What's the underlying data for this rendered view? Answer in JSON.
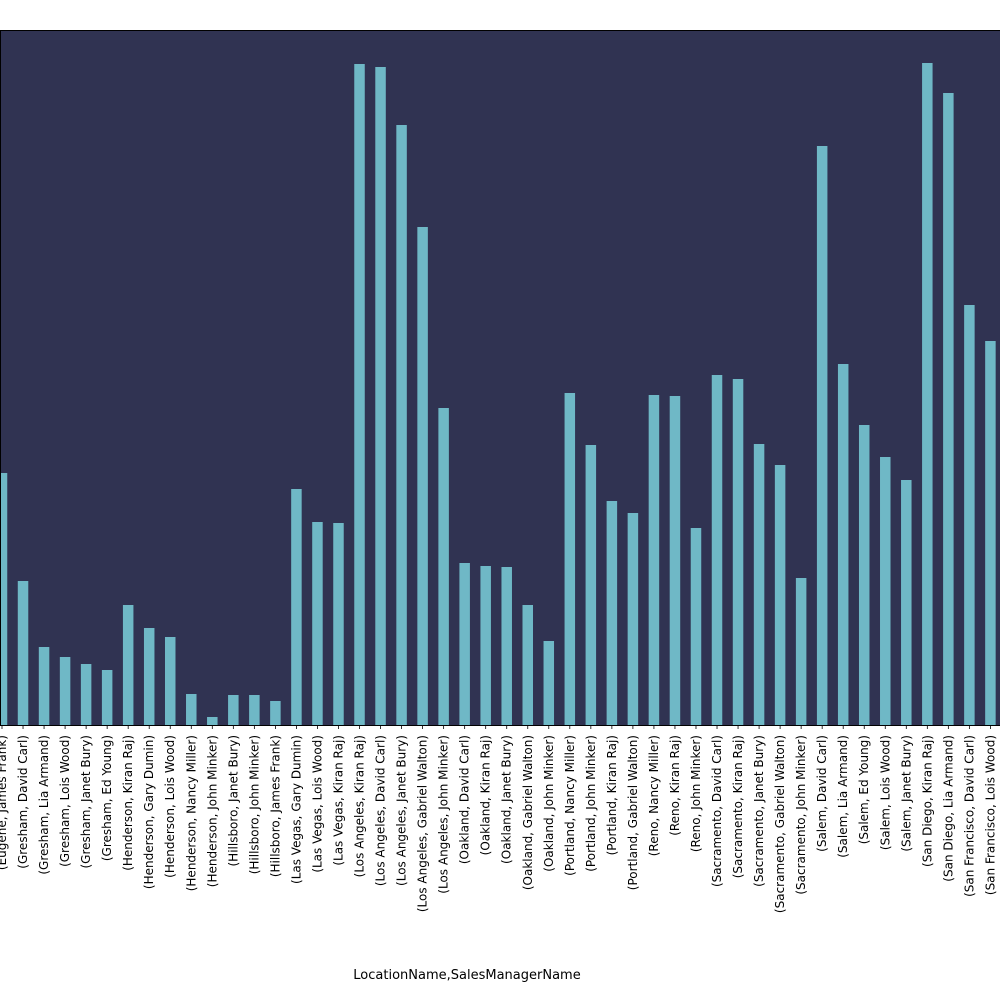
{
  "chart_data": {
    "type": "bar",
    "xlabel": "LocationName,SalesManagerName",
    "categories": [
      "(Eugene, James Frank)",
      "(Gresham, David Carl)",
      "(Gresham, Lia Armand)",
      "(Gresham, Lois Wood)",
      "(Gresham, Janet Bury)",
      "(Gresham, Ed Young)",
      "(Henderson, Kiran Raj)",
      "(Henderson, Gary Dumin)",
      "(Henderson, Lois Wood)",
      "(Henderson, Nancy Miller)",
      "(Henderson, John Minker)",
      "(Hillsboro, Janet Bury)",
      "(Hillsboro, John Minker)",
      "(Hillsboro, James Frank)",
      "(Las Vegas, Gary Dumin)",
      "(Las Vegas, Lois Wood)",
      "(Las Vegas, Kiran Raj)",
      "(Los Angeles, Kiran Raj)",
      "(Los Angeles, David Carl)",
      "(Los Angeles, Janet Bury)",
      "(Los Angeles, Gabriel Walton)",
      "(Los Angeles, John Minker)",
      "(Oakland, David Carl)",
      "(Oakland, Kiran Raj)",
      "(Oakland, Janet Bury)",
      "(Oakland, Gabriel Walton)",
      "(Oakland, John Minker)",
      "(Portland, Nancy Miller)",
      "(Portland, John Minker)",
      "(Portland, Kiran Raj)",
      "(Portland, Gabriel Walton)",
      "(Reno, Nancy Miller)",
      "(Reno, Kiran Raj)",
      "(Reno, John Minker)",
      "(Sacramento, David Carl)",
      "(Sacramento, Kiran Raj)",
      "(Sacramento, Janet Bury)",
      "(Sacramento, Gabriel Walton)",
      "(Sacramento, John Minker)",
      "(Salem, David Carl)",
      "(Salem, Lia Armand)",
      "(Salem, Ed Young)",
      "(Salem, Lois Wood)",
      "(Salem, Janet Bury)",
      "(San Diego, Kiran Raj)",
      "(San Diego, Lia Armand)",
      "(San Francisco, David Carl)",
      "(San Francisco, Lois Wood)"
    ],
    "values": [
      252,
      144,
      78,
      68,
      61,
      55,
      120,
      97,
      88,
      31,
      8,
      30,
      30,
      24,
      236,
      203,
      202,
      661,
      658,
      600,
      498,
      317,
      162,
      159,
      158,
      120,
      84,
      332,
      280,
      224,
      212,
      330,
      329,
      197,
      350,
      346,
      281,
      260,
      147,
      579,
      361,
      300,
      268,
      245,
      662,
      632,
      420,
      384
    ],
    "ylim": [
      0,
      695
    ],
    "grid": false,
    "legend": "none",
    "colors": {
      "bar": "#6fb8c6",
      "plot_background": "#303352",
      "axis": "#000000",
      "text": "#000000",
      "page_background": "#ffffff"
    }
  }
}
